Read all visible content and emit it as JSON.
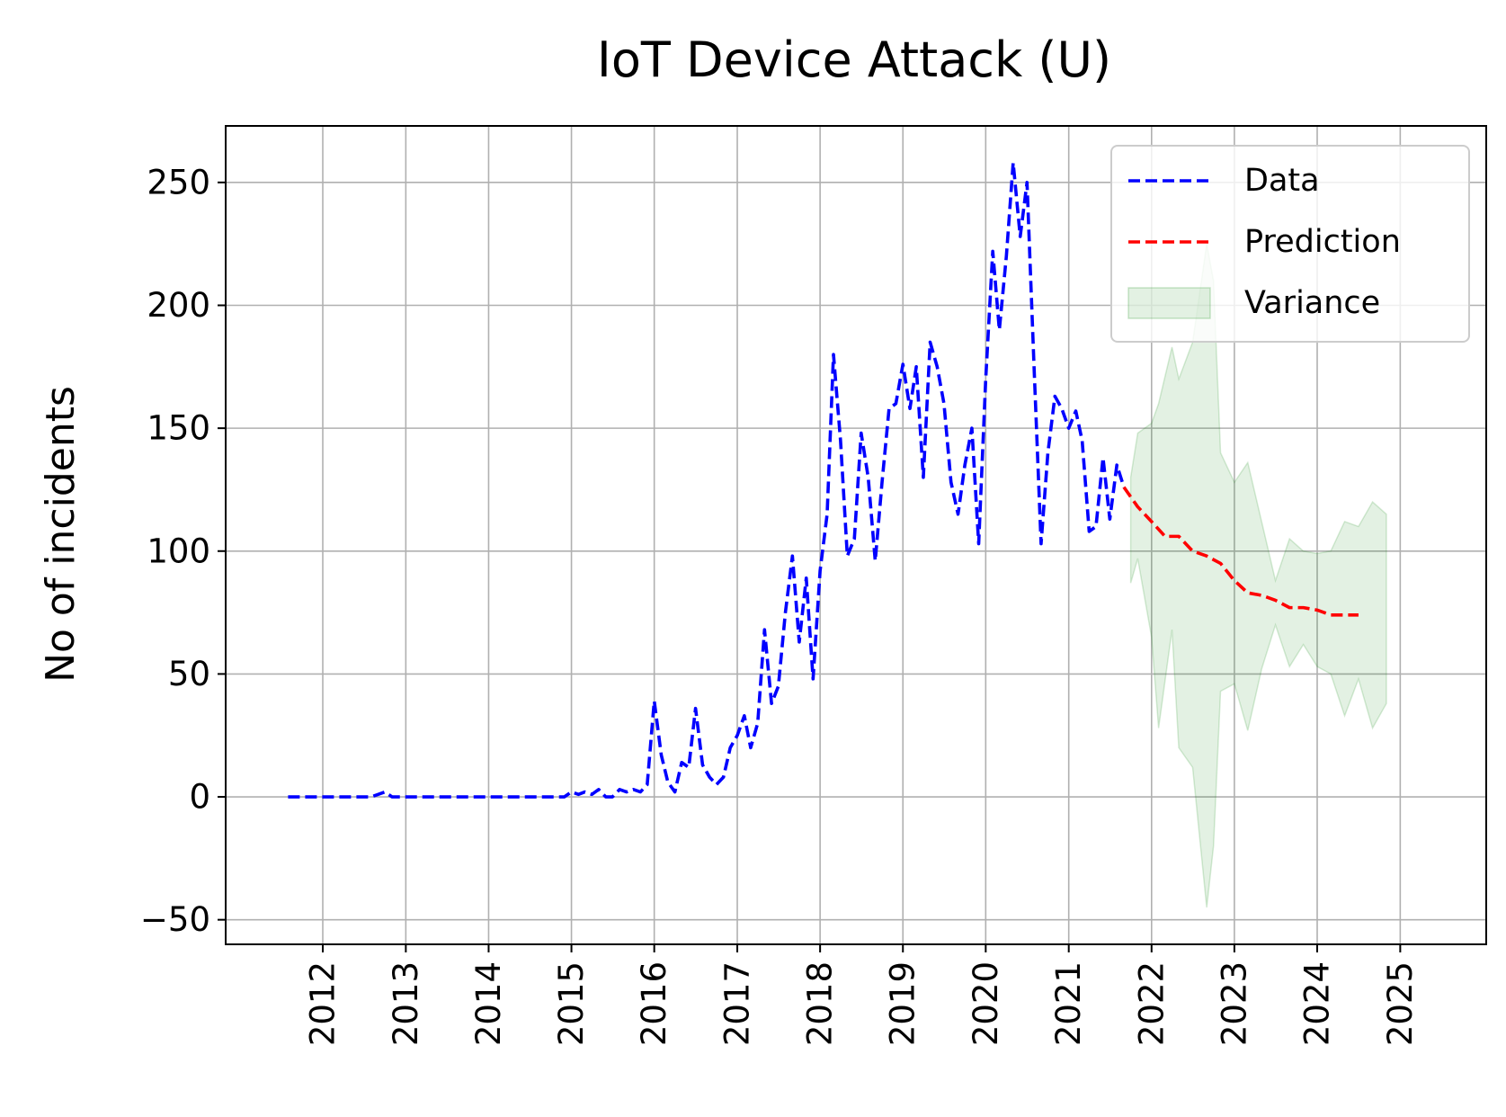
{
  "chart_data": {
    "type": "line",
    "title": "IoT Device Attack (U)",
    "ylabel": "No of incidents",
    "xlabel": "",
    "ylim": [
      -60,
      273
    ],
    "xlim": [
      "2010-10-30",
      "2026-01-15"
    ],
    "grid": true,
    "legend_position": "top-right",
    "x_ticks": [
      "2012",
      "2013",
      "2014",
      "2015",
      "2016",
      "2017",
      "2018",
      "2019",
      "2020",
      "2021",
      "2022",
      "2023",
      "2024",
      "2025"
    ],
    "y_ticks": [
      -50,
      0,
      50,
      100,
      150,
      200,
      250
    ],
    "y_tick_labels": [
      "−50",
      "0",
      "50",
      "100",
      "150",
      "200",
      "250"
    ],
    "colors": {
      "data": "#0000ff",
      "prediction": "#ff0000",
      "variance": "#008000"
    },
    "series": [
      {
        "name": "Data",
        "style": "dashed",
        "points": [
          [
            "2011-08-01",
            0
          ],
          [
            "2011-09-01",
            0
          ],
          [
            "2011-10-01",
            0
          ],
          [
            "2011-11-01",
            0
          ],
          [
            "2011-12-01",
            0
          ],
          [
            "2012-01-01",
            0
          ],
          [
            "2012-02-01",
            0
          ],
          [
            "2012-03-01",
            0
          ],
          [
            "2012-04-01",
            0
          ],
          [
            "2012-05-01",
            0
          ],
          [
            "2012-06-01",
            0
          ],
          [
            "2012-07-01",
            0
          ],
          [
            "2012-08-01",
            0
          ],
          [
            "2012-09-01",
            1
          ],
          [
            "2012-10-01",
            2
          ],
          [
            "2012-11-01",
            0
          ],
          [
            "2012-12-01",
            0
          ],
          [
            "2013-01-01",
            0
          ],
          [
            "2013-03-01",
            0
          ],
          [
            "2013-06-01",
            0
          ],
          [
            "2013-09-01",
            0
          ],
          [
            "2013-12-01",
            0
          ],
          [
            "2014-03-01",
            0
          ],
          [
            "2014-06-01",
            0
          ],
          [
            "2014-09-01",
            0
          ],
          [
            "2014-12-01",
            0
          ],
          [
            "2015-01-01",
            2
          ],
          [
            "2015-02-01",
            1
          ],
          [
            "2015-03-01",
            2
          ],
          [
            "2015-04-01",
            1
          ],
          [
            "2015-05-01",
            3
          ],
          [
            "2015-06-01",
            0
          ],
          [
            "2015-07-01",
            0
          ],
          [
            "2015-08-01",
            3
          ],
          [
            "2015-09-01",
            2
          ],
          [
            "2015-10-01",
            3
          ],
          [
            "2015-11-01",
            2
          ],
          [
            "2015-12-01",
            5
          ],
          [
            "2016-01-01",
            39
          ],
          [
            "2016-02-01",
            17
          ],
          [
            "2016-03-01",
            6
          ],
          [
            "2016-04-01",
            2
          ],
          [
            "2016-05-01",
            14
          ],
          [
            "2016-06-01",
            12
          ],
          [
            "2016-07-01",
            36
          ],
          [
            "2016-08-01",
            13
          ],
          [
            "2016-09-01",
            8
          ],
          [
            "2016-10-01",
            5
          ],
          [
            "2016-11-01",
            8
          ],
          [
            "2016-12-01",
            20
          ],
          [
            "2017-01-01",
            25
          ],
          [
            "2017-02-01",
            33
          ],
          [
            "2017-03-01",
            20
          ],
          [
            "2017-04-01",
            30
          ],
          [
            "2017-05-01",
            68
          ],
          [
            "2017-06-01",
            38
          ],
          [
            "2017-07-01",
            45
          ],
          [
            "2017-08-01",
            75
          ],
          [
            "2017-09-01",
            98
          ],
          [
            "2017-10-01",
            63
          ],
          [
            "2017-11-01",
            89
          ],
          [
            "2017-12-01",
            48
          ],
          [
            "2018-01-01",
            92
          ],
          [
            "2018-02-01",
            115
          ],
          [
            "2018-03-01",
            180
          ],
          [
            "2018-04-01",
            145
          ],
          [
            "2018-05-01",
            98
          ],
          [
            "2018-06-01",
            105
          ],
          [
            "2018-07-01",
            148
          ],
          [
            "2018-08-01",
            130
          ],
          [
            "2018-09-01",
            96
          ],
          [
            "2018-10-01",
            128
          ],
          [
            "2018-11-01",
            158
          ],
          [
            "2018-12-01",
            160
          ],
          [
            "2019-01-01",
            176
          ],
          [
            "2019-02-01",
            158
          ],
          [
            "2019-03-01",
            175
          ],
          [
            "2019-04-01",
            130
          ],
          [
            "2019-05-01",
            185
          ],
          [
            "2019-06-01",
            175
          ],
          [
            "2019-07-01",
            160
          ],
          [
            "2019-08-01",
            128
          ],
          [
            "2019-09-01",
            115
          ],
          [
            "2019-10-01",
            135
          ],
          [
            "2019-11-01",
            150
          ],
          [
            "2019-12-01",
            103
          ],
          [
            "2020-01-01",
            170
          ],
          [
            "2020-02-01",
            222
          ],
          [
            "2020-03-01",
            190
          ],
          [
            "2020-04-01",
            220
          ],
          [
            "2020-05-01",
            258
          ],
          [
            "2020-06-01",
            228
          ],
          [
            "2020-07-01",
            250
          ],
          [
            "2020-08-01",
            175
          ],
          [
            "2020-09-01",
            103
          ],
          [
            "2020-10-01",
            140
          ],
          [
            "2020-11-01",
            163
          ],
          [
            "2020-12-01",
            158
          ],
          [
            "2021-01-01",
            150
          ],
          [
            "2021-02-01",
            157
          ],
          [
            "2021-03-01",
            145
          ],
          [
            "2021-04-01",
            108
          ],
          [
            "2021-05-01",
            110
          ],
          [
            "2021-06-01",
            138
          ],
          [
            "2021-07-01",
            113
          ],
          [
            "2021-08-01",
            135
          ],
          [
            "2021-09-01",
            126
          ]
        ]
      },
      {
        "name": "Prediction",
        "style": "dashed",
        "points": [
          [
            "2021-09-01",
            126
          ],
          [
            "2021-11-01",
            118
          ],
          [
            "2022-01-01",
            112
          ],
          [
            "2022-03-01",
            106
          ],
          [
            "2022-05-01",
            106
          ],
          [
            "2022-07-01",
            100
          ],
          [
            "2022-09-01",
            98
          ],
          [
            "2022-11-01",
            95
          ],
          [
            "2023-01-01",
            88
          ],
          [
            "2023-03-01",
            83
          ],
          [
            "2023-05-01",
            82
          ],
          [
            "2023-07-01",
            80
          ],
          [
            "2023-09-01",
            77
          ],
          [
            "2023-11-01",
            77
          ],
          [
            "2024-01-01",
            76
          ],
          [
            "2024-03-01",
            74
          ],
          [
            "2024-05-01",
            74
          ],
          [
            "2024-07-01",
            74
          ]
        ]
      },
      {
        "name": "Variance",
        "style": "band",
        "points": [
          [
            "2021-10-01",
            87,
            130
          ],
          [
            "2021-11-01",
            97,
            148
          ],
          [
            "2022-01-01",
            65,
            152
          ],
          [
            "2022-02-01",
            28,
            160
          ],
          [
            "2022-04-01",
            68,
            183
          ],
          [
            "2022-05-01",
            20,
            170
          ],
          [
            "2022-07-01",
            12,
            185
          ],
          [
            "2022-09-01",
            -45,
            225
          ],
          [
            "2022-10-01",
            -20,
            210
          ],
          [
            "2022-11-01",
            43,
            140
          ],
          [
            "2023-01-01",
            46,
            128
          ],
          [
            "2023-03-01",
            27,
            136
          ],
          [
            "2023-05-01",
            52,
            112
          ],
          [
            "2023-07-01",
            70,
            88
          ],
          [
            "2023-09-01",
            53,
            105
          ],
          [
            "2023-11-01",
            62,
            100
          ],
          [
            "2024-01-01",
            53,
            99
          ],
          [
            "2024-03-01",
            50,
            100
          ],
          [
            "2024-05-01",
            33,
            112
          ],
          [
            "2024-07-01",
            48,
            110
          ],
          [
            "2024-09-01",
            28,
            120
          ],
          [
            "2024-11-01",
            38,
            115
          ]
        ]
      }
    ]
  }
}
